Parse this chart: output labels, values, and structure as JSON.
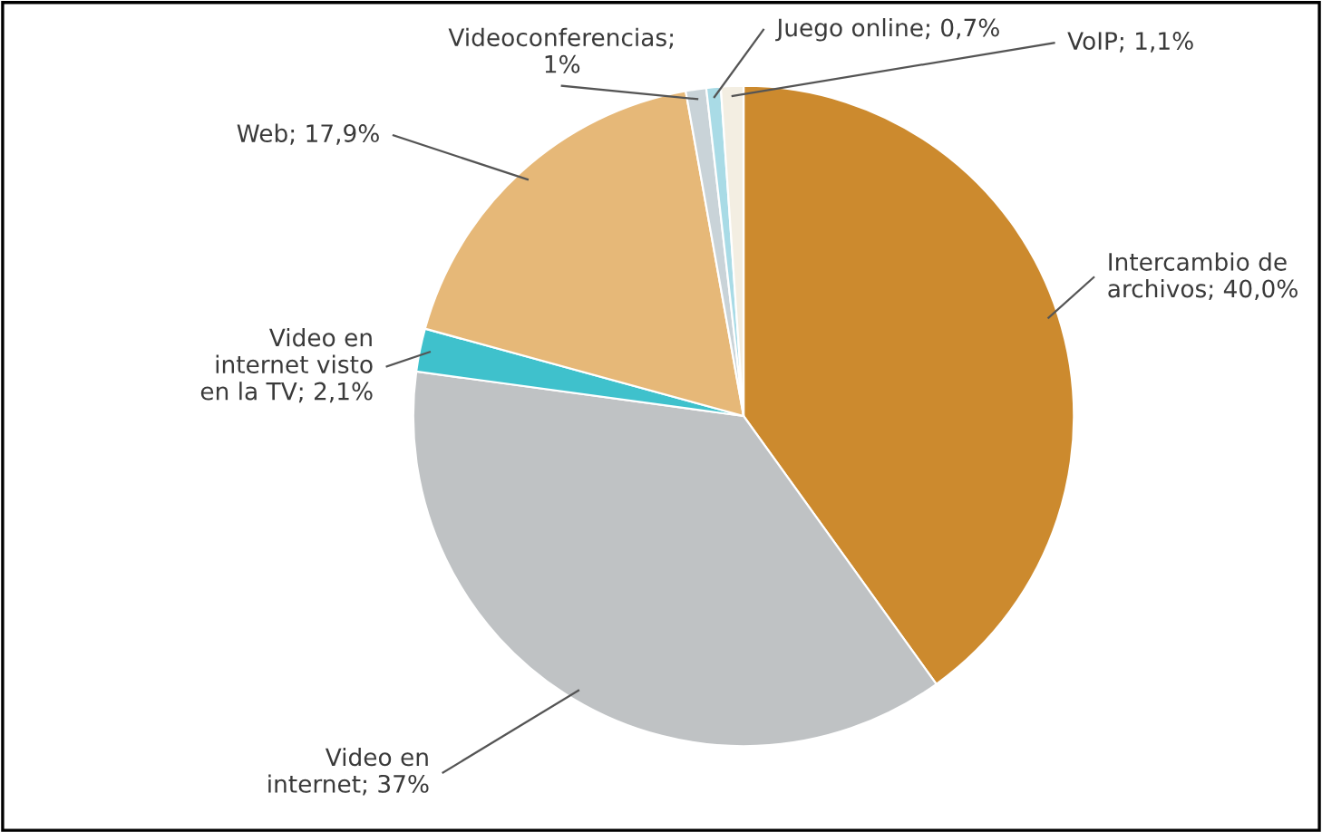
{
  "chart_data": {
    "type": "pie",
    "categories": [
      "Intercambio de\narchivos; 40,0%",
      "Video en\ninternet; 37%",
      "Video en\ninternet visto\nen la TV; 2,1%",
      "Web; 17,9%",
      "Videoconferencias;\n1%",
      "Juego online; 0,7%",
      "VoIP; 1,1%"
    ],
    "values": [
      40.0,
      37,
      2.1,
      17.9,
      1,
      0.7,
      1.1
    ],
    "colors": [
      "#cc8a2e",
      "#bfc2c4",
      "#3fc1cc",
      "#e6b878",
      "#c9d3d8",
      "#a9dbe6",
      "#f3eee2"
    ]
  }
}
